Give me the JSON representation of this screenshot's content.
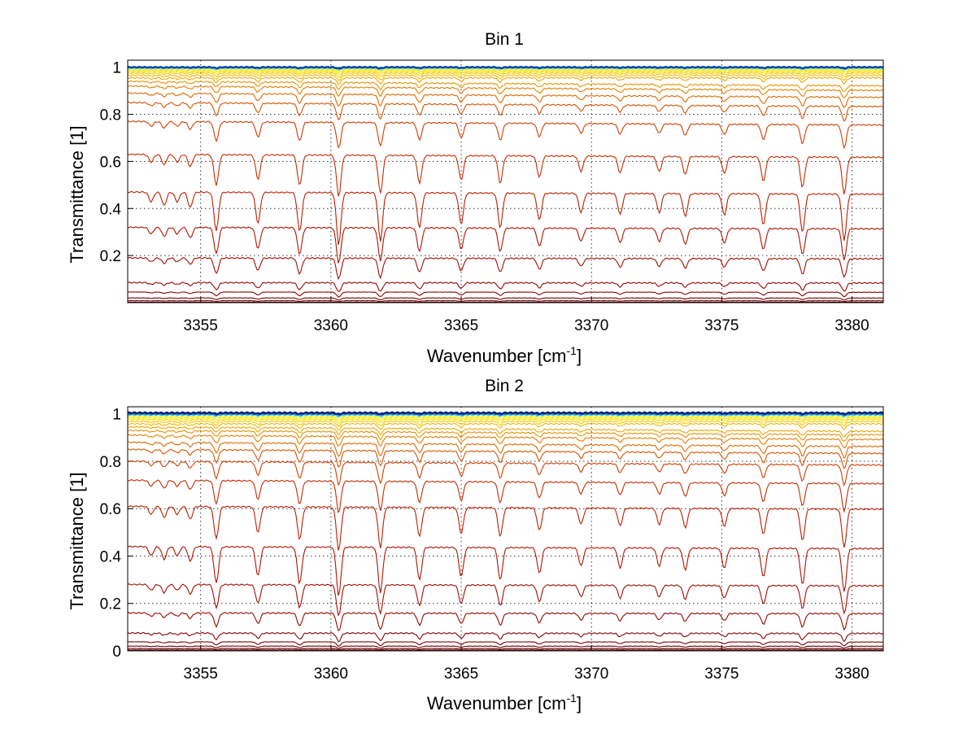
{
  "chart_data": [
    {
      "type": "line",
      "title": "Bin 1",
      "xlabel": "Wavenumber [cm",
      "xlabel_sup": "-1",
      "xlabel_close": "]",
      "ylabel": "Transmittance [1]",
      "xlim": [
        3352.2,
        3381.2
      ],
      "ylim": [
        0.0,
        1.03
      ],
      "xticks": [
        "3355",
        "3360",
        "3365",
        "3370",
        "3375",
        "3380"
      ],
      "yticks": [
        "0.2",
        "0.4",
        "0.6",
        "0.8",
        "1"
      ],
      "grid": "dotted",
      "series_count": 24,
      "series_baselines": [
        1.0,
        1.0,
        1.0,
        0.997,
        0.993,
        0.988,
        0.982,
        0.975,
        0.966,
        0.955,
        0.94,
        0.92,
        0.89,
        0.85,
        0.77,
        0.63,
        0.47,
        0.32,
        0.19,
        0.085,
        0.045,
        0.02,
        0.008,
        0.002
      ],
      "series_colors": [
        "#0a3aa8",
        "#1f8fe6",
        "#35c2f5",
        "#6fe8f0",
        "#f3f200",
        "#f7e600",
        "#f7d800",
        "#f6c800",
        "#f3b800",
        "#efa600",
        "#ea9200",
        "#e47e00",
        "#de6a00",
        "#d85400",
        "#d03e00",
        "#c62c00",
        "#bc1f00",
        "#b01500",
        "#a20e00",
        "#940800",
        "#850400",
        "#790200",
        "#6e0000",
        "#640000"
      ]
    },
    {
      "type": "line",
      "title": "Bin 2",
      "xlabel": "Wavenumber [cm",
      "xlabel_sup": "-1",
      "xlabel_close": "]",
      "ylabel": "Transmittance [1]",
      "xlim": [
        3352.2,
        3381.2
      ],
      "ylim": [
        0.0,
        1.03
      ],
      "xticks": [
        "3355",
        "3360",
        "3365",
        "3370",
        "3375",
        "3380"
      ],
      "yticks": [
        "0",
        "0.2",
        "0.4",
        "0.6",
        "0.8",
        "1"
      ],
      "grid": "dotted",
      "series_count": 26,
      "series_baselines": [
        1.005,
        1.003,
        1.0,
        0.998,
        0.995,
        0.99,
        0.984,
        0.977,
        0.968,
        0.958,
        0.945,
        0.93,
        0.91,
        0.88,
        0.85,
        0.8,
        0.72,
        0.61,
        0.44,
        0.28,
        0.16,
        0.075,
        0.038,
        0.02,
        0.01,
        0.004
      ],
      "series_colors": [
        "#061a70",
        "#0a3aa8",
        "#1f8fe6",
        "#35c2f5",
        "#6fe8f0",
        "#f3f200",
        "#f7e600",
        "#f7d800",
        "#f6c800",
        "#f3b800",
        "#efa600",
        "#ea9200",
        "#e47e00",
        "#de6a00",
        "#d85400",
        "#d03e00",
        "#c62c00",
        "#bc1f00",
        "#b01500",
        "#a20e00",
        "#940800",
        "#850400",
        "#790200",
        "#6e0000",
        "#640000",
        "#5a0000"
      ]
    }
  ]
}
